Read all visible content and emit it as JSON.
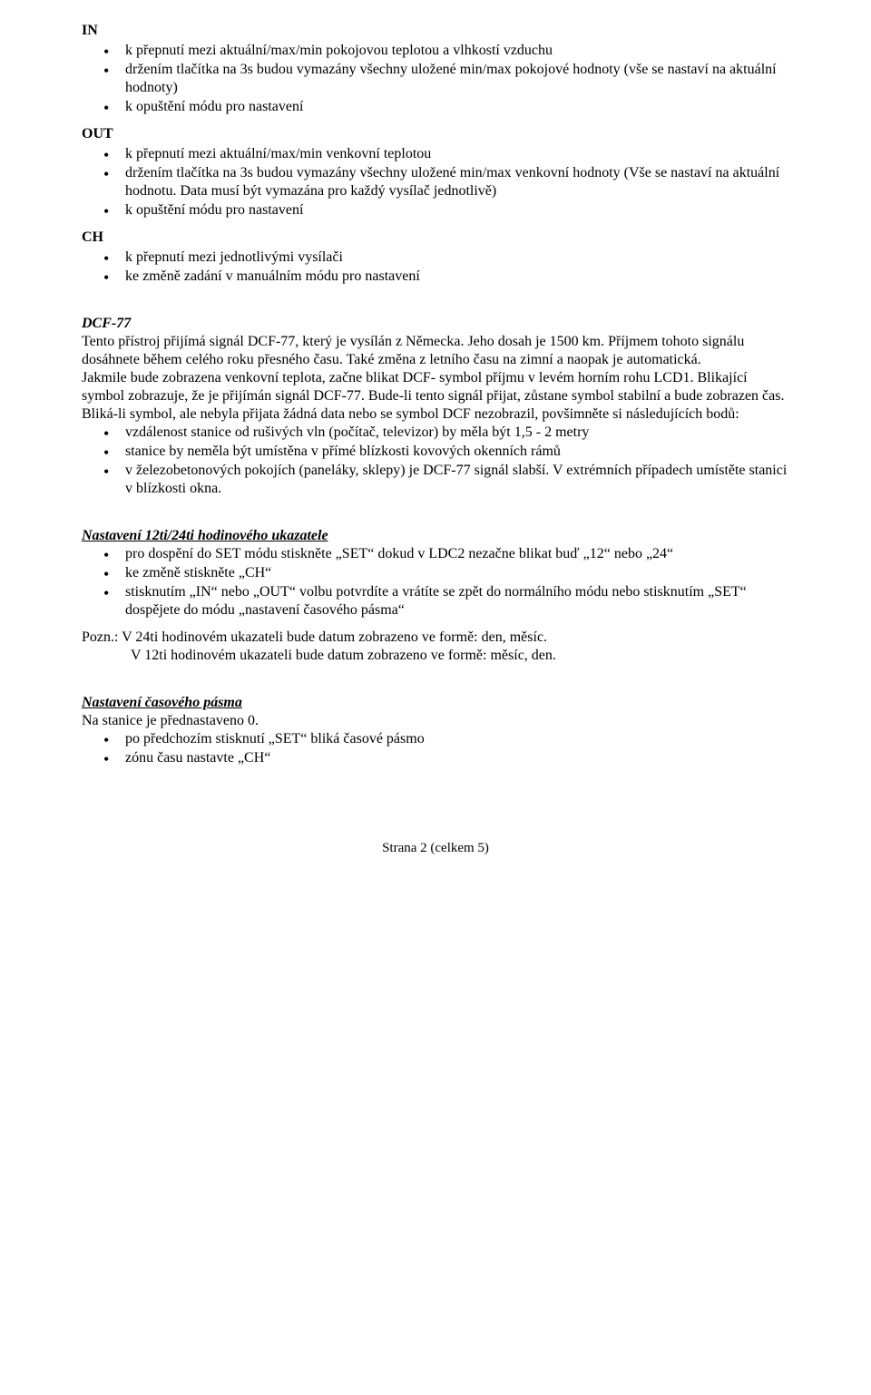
{
  "in": {
    "label": "IN",
    "items": [
      "k přepnutí mezi aktuální/max/min pokojovou teplotou a vlhkostí vzduchu",
      "držením tlačítka na 3s budou vymazány všechny uložené min/max pokojové hodnoty (vše se nastaví na aktuální hodnoty)",
      " k opuštění módu pro nastavení"
    ]
  },
  "out": {
    "label": "OUT",
    "items": [
      "k přepnutí mezi aktuální/max/min venkovní teplotou",
      "držením tlačítka na 3s budou vymazány všechny uložené min/max venkovní hodnoty (Vše se nastaví na aktuální hodnotu. Data musí být vymazána pro každý vysílač jednotlivě)",
      "k opuštění módu pro nastavení"
    ]
  },
  "ch": {
    "label": "CH",
    "items": [
      "k přepnutí mezi jednotlivými vysílači",
      "ke změně zadání v manuálním módu pro nastavení"
    ]
  },
  "dcf": {
    "heading": "DCF-77",
    "p1": "Tento přístroj přijímá signál DCF-77, který je vysílán z Německa. Jeho dosah je 1500 km. Příjmem tohoto signálu dosáhnete během celého roku přesného času. Také změna z letního času na zimní a naopak je automatická.",
    "p2": "Jakmile bude zobrazena venkovní teplota, začne blikat DCF- symbol příjmu v levém horním rohu LCD1. Blikající symbol zobrazuje, že je přijímán signál DCF-77. Bude-li tento signál přijat, zůstane symbol stabilní a bude zobrazen čas.",
    "p3": "Bliká-li symbol, ale nebyla přijata žádná data nebo se symbol DCF nezobrazil, povšimněte si následujících bodů:",
    "items": [
      "vzdálenost stanice od rušivých vln (počítač, televizor) by měla být 1,5 - 2 metry",
      "stanice by neměla být umístěna v přímé blízkosti kovových okenních rámů",
      "v železobetonových pokojích (paneláky, sklepy) je DCF-77 signál slabší. V extrémních případech umístěte stanici v blízkosti okna."
    ]
  },
  "clock": {
    "heading": "Nastavení 12ti/24ti hodinového ukazatele",
    "items": [
      "pro dospění do SET módu stiskněte „SET“ dokud v LDC2 nezačne blikat buď „12“ nebo „24“",
      "ke změně stiskněte „CH“",
      "stisknutím „IN“ nebo „OUT“ volbu potvrdíte a vrátíte se zpět do normálního módu nebo stisknutím „SET“ dospějete do módu „nastavení časového pásma“"
    ],
    "note1": "Pozn.: V 24ti hodinovém ukazateli bude datum zobrazeno ve formě: den, měsíc.",
    "note2": "V 12ti hodinovém ukazateli bude datum zobrazeno ve formě: měsíc, den."
  },
  "tz": {
    "heading": "Nastavení časového pásma",
    "intro": "Na stanice je přednastaveno 0.",
    "items": [
      "po předchozím stisknutí „SET“ bliká časové pásmo",
      "zónu času nastavte „CH“"
    ]
  },
  "footer": "Strana 2 (celkem 5)"
}
